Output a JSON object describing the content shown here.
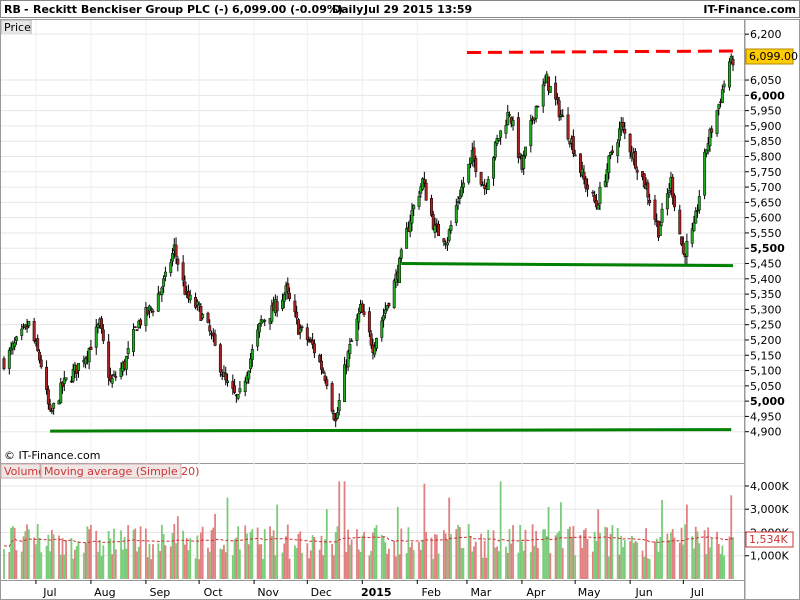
{
  "header": {
    "symbol": "RB",
    "name": "Reckitt Benckiser Group PLC (-)",
    "last": "6,099.00 (-0.09%)",
    "period": "Daily",
    "datetime": "Jul 29 2015 13:59",
    "site": "IT-Finance.com"
  },
  "price_pane": {
    "label": "Price",
    "copyright": "© IT-Finance.com"
  },
  "volume_pane": {
    "label": "Volume",
    "ma_label": "Moving average (Simple 20)"
  },
  "chart_data": [
    {
      "type": "candlestick",
      "title": "RB - Reckitt Benckiser Group PLC (-)",
      "ylim": [
        4850,
        6230
      ],
      "y_ticks": [
        {
          "v": 6200,
          "label": "6,200",
          "bold": false
        },
        {
          "v": 6050,
          "label": "6,050",
          "bold": false
        },
        {
          "v": 6000,
          "label": "6,000",
          "bold": true
        },
        {
          "v": 5950,
          "label": "5,950",
          "bold": false
        },
        {
          "v": 5900,
          "label": "5,900",
          "bold": false
        },
        {
          "v": 5850,
          "label": "5,850",
          "bold": false
        },
        {
          "v": 5800,
          "label": "5,800",
          "bold": false
        },
        {
          "v": 5750,
          "label": "5,750",
          "bold": false
        },
        {
          "v": 5700,
          "label": "5,700",
          "bold": false
        },
        {
          "v": 5650,
          "label": "5,650",
          "bold": false
        },
        {
          "v": 5600,
          "label": "5,600",
          "bold": false
        },
        {
          "v": 5550,
          "label": "5,550",
          "bold": false
        },
        {
          "v": 5500,
          "label": "5,500",
          "bold": true
        },
        {
          "v": 5450,
          "label": "5,450",
          "bold": false
        },
        {
          "v": 5400,
          "label": "5,400",
          "bold": false
        },
        {
          "v": 5350,
          "label": "5,350",
          "bold": false
        },
        {
          "v": 5300,
          "label": "5,300",
          "bold": false
        },
        {
          "v": 5250,
          "label": "5,250",
          "bold": false
        },
        {
          "v": 5200,
          "label": "5,200",
          "bold": false
        },
        {
          "v": 5150,
          "label": "5,150",
          "bold": false
        },
        {
          "v": 5100,
          "label": "5,100",
          "bold": false
        },
        {
          "v": 5050,
          "label": "5,050",
          "bold": false
        },
        {
          "v": 5000,
          "label": "5,000",
          "bold": true
        },
        {
          "v": 4950,
          "label": "4,950",
          "bold": false
        },
        {
          "v": 4900,
          "label": "4,900",
          "bold": false
        }
      ],
      "last_price": {
        "value": 6099,
        "label": "6,099.00",
        "color": "#ffcc00"
      },
      "x_labels": [
        {
          "date": "2014-07-01",
          "label": "Jul",
          "bold": false
        },
        {
          "date": "2014-08-01",
          "label": "Aug",
          "bold": false
        },
        {
          "date": "2014-09-01",
          "label": "Sep",
          "bold": false
        },
        {
          "date": "2014-10-01",
          "label": "Oct",
          "bold": false
        },
        {
          "date": "2014-11-01",
          "label": "Nov",
          "bold": false
        },
        {
          "date": "2014-12-01",
          "label": "Dec",
          "bold": false
        },
        {
          "date": "2015-01-01",
          "label": "2015",
          "bold": true
        },
        {
          "date": "2015-02-01",
          "label": "Feb",
          "bold": false
        },
        {
          "date": "2015-03-01",
          "label": "Mar",
          "bold": false
        },
        {
          "date": "2015-04-01",
          "label": "Apr",
          "bold": false
        },
        {
          "date": "2015-05-01",
          "label": "May",
          "bold": false
        },
        {
          "date": "2015-06-01",
          "label": "Jun",
          "bold": false
        },
        {
          "date": "2015-07-01",
          "label": "Jul",
          "bold": false
        }
      ],
      "x_range": [
        "2014-06-13",
        "2015-07-29"
      ],
      "close_anchors": [
        [
          "2014-06-13",
          5130
        ],
        [
          "2014-06-20",
          5190
        ],
        [
          "2014-06-27",
          5250
        ],
        [
          "2014-07-04",
          5120
        ],
        [
          "2014-07-09",
          4950
        ],
        [
          "2014-07-16",
          5050
        ],
        [
          "2014-07-23",
          5100
        ],
        [
          "2014-07-30",
          5160
        ],
        [
          "2014-08-06",
          5250
        ],
        [
          "2014-08-12",
          5060
        ],
        [
          "2014-08-20",
          5120
        ],
        [
          "2014-08-27",
          5250
        ],
        [
          "2014-09-05",
          5310
        ],
        [
          "2014-09-12",
          5400
        ],
        [
          "2014-09-17",
          5500
        ],
        [
          "2014-09-24",
          5340
        ],
        [
          "2014-10-01",
          5300
        ],
        [
          "2014-10-08",
          5210
        ],
        [
          "2014-10-16",
          5060
        ],
        [
          "2014-10-23",
          5000
        ],
        [
          "2014-10-29",
          5120
        ],
        [
          "2014-11-05",
          5260
        ],
        [
          "2014-11-12",
          5300
        ],
        [
          "2014-11-19",
          5360
        ],
        [
          "2014-11-26",
          5240
        ],
        [
          "2014-12-04",
          5180
        ],
        [
          "2014-12-12",
          5070
        ],
        [
          "2014-12-17",
          4930
        ],
        [
          "2014-12-23",
          5130
        ],
        [
          "2014-12-31",
          5300
        ],
        [
          "2015-01-07",
          5180
        ],
        [
          "2015-01-14",
          5300
        ],
        [
          "2015-01-21",
          5420
        ],
        [
          "2015-01-28",
          5600
        ],
        [
          "2015-02-04",
          5720
        ],
        [
          "2015-02-11",
          5560
        ],
        [
          "2015-02-18",
          5530
        ],
        [
          "2015-02-25",
          5680
        ],
        [
          "2015-03-04",
          5800
        ],
        [
          "2015-03-11",
          5700
        ],
        [
          "2015-03-18",
          5850
        ],
        [
          "2015-03-25",
          5950
        ],
        [
          "2015-04-01",
          5760
        ],
        [
          "2015-04-08",
          5950
        ],
        [
          "2015-04-15",
          6050
        ],
        [
          "2015-04-22",
          5950
        ],
        [
          "2015-04-29",
          5850
        ],
        [
          "2015-05-06",
          5720
        ],
        [
          "2015-05-13",
          5640
        ],
        [
          "2015-05-20",
          5780
        ],
        [
          "2015-05-27",
          5900
        ],
        [
          "2015-06-03",
          5800
        ],
        [
          "2015-06-10",
          5700
        ],
        [
          "2015-06-17",
          5560
        ],
        [
          "2015-06-24",
          5720
        ],
        [
          "2015-07-01",
          5480
        ],
        [
          "2015-07-07",
          5560
        ],
        [
          "2015-07-14",
          5830
        ],
        [
          "2015-07-21",
          5970
        ],
        [
          "2015-07-27",
          6110
        ],
        [
          "2015-07-29",
          6099
        ]
      ],
      "volume": {
        "ylim": [
          0,
          4300
        ],
        "y_ticks": [
          {
            "v": 1000,
            "label": "1,000K"
          },
          {
            "v": 2000,
            "label": "2,000K"
          },
          {
            "v": 3000,
            "label": "3,000K"
          },
          {
            "v": 4000,
            "label": "4,000K"
          }
        ],
        "last_ma": {
          "value": 1534,
          "label": "1,534K"
        },
        "base": 1700,
        "ma_level": 1600,
        "spikes": [
          [
            "2014-09-19",
            2700
          ],
          [
            "2014-10-10",
            2800
          ],
          [
            "2014-10-17",
            3500
          ],
          [
            "2014-11-14",
            3200
          ],
          [
            "2014-12-12",
            3000
          ],
          [
            "2014-12-19",
            4200
          ],
          [
            "2014-12-22",
            4200
          ],
          [
            "2015-01-21",
            3100
          ],
          [
            "2015-02-05",
            4100
          ],
          [
            "2015-02-19",
            3500
          ],
          [
            "2015-03-20",
            4200
          ],
          [
            "2015-04-16",
            3100
          ],
          [
            "2015-04-23",
            3300
          ],
          [
            "2015-05-14",
            3000
          ],
          [
            "2015-06-19",
            3400
          ],
          [
            "2015-07-03",
            3200
          ],
          [
            "2015-07-28",
            3600
          ]
        ]
      },
      "annotations": [
        {
          "type": "support",
          "color": "#008000",
          "from": [
            "2014-07-09",
            4902
          ],
          "to": [
            "2015-07-28",
            4907
          ]
        },
        {
          "type": "support",
          "color": "#008000",
          "from": [
            "2015-01-23",
            5450
          ],
          "to": [
            "2015-07-29",
            5443
          ]
        },
        {
          "type": "resistance",
          "color": "#ff0000",
          "dash": true,
          "from": [
            "2015-03-01",
            6140
          ],
          "to": [
            "2015-07-29",
            6145
          ]
        }
      ]
    }
  ]
}
